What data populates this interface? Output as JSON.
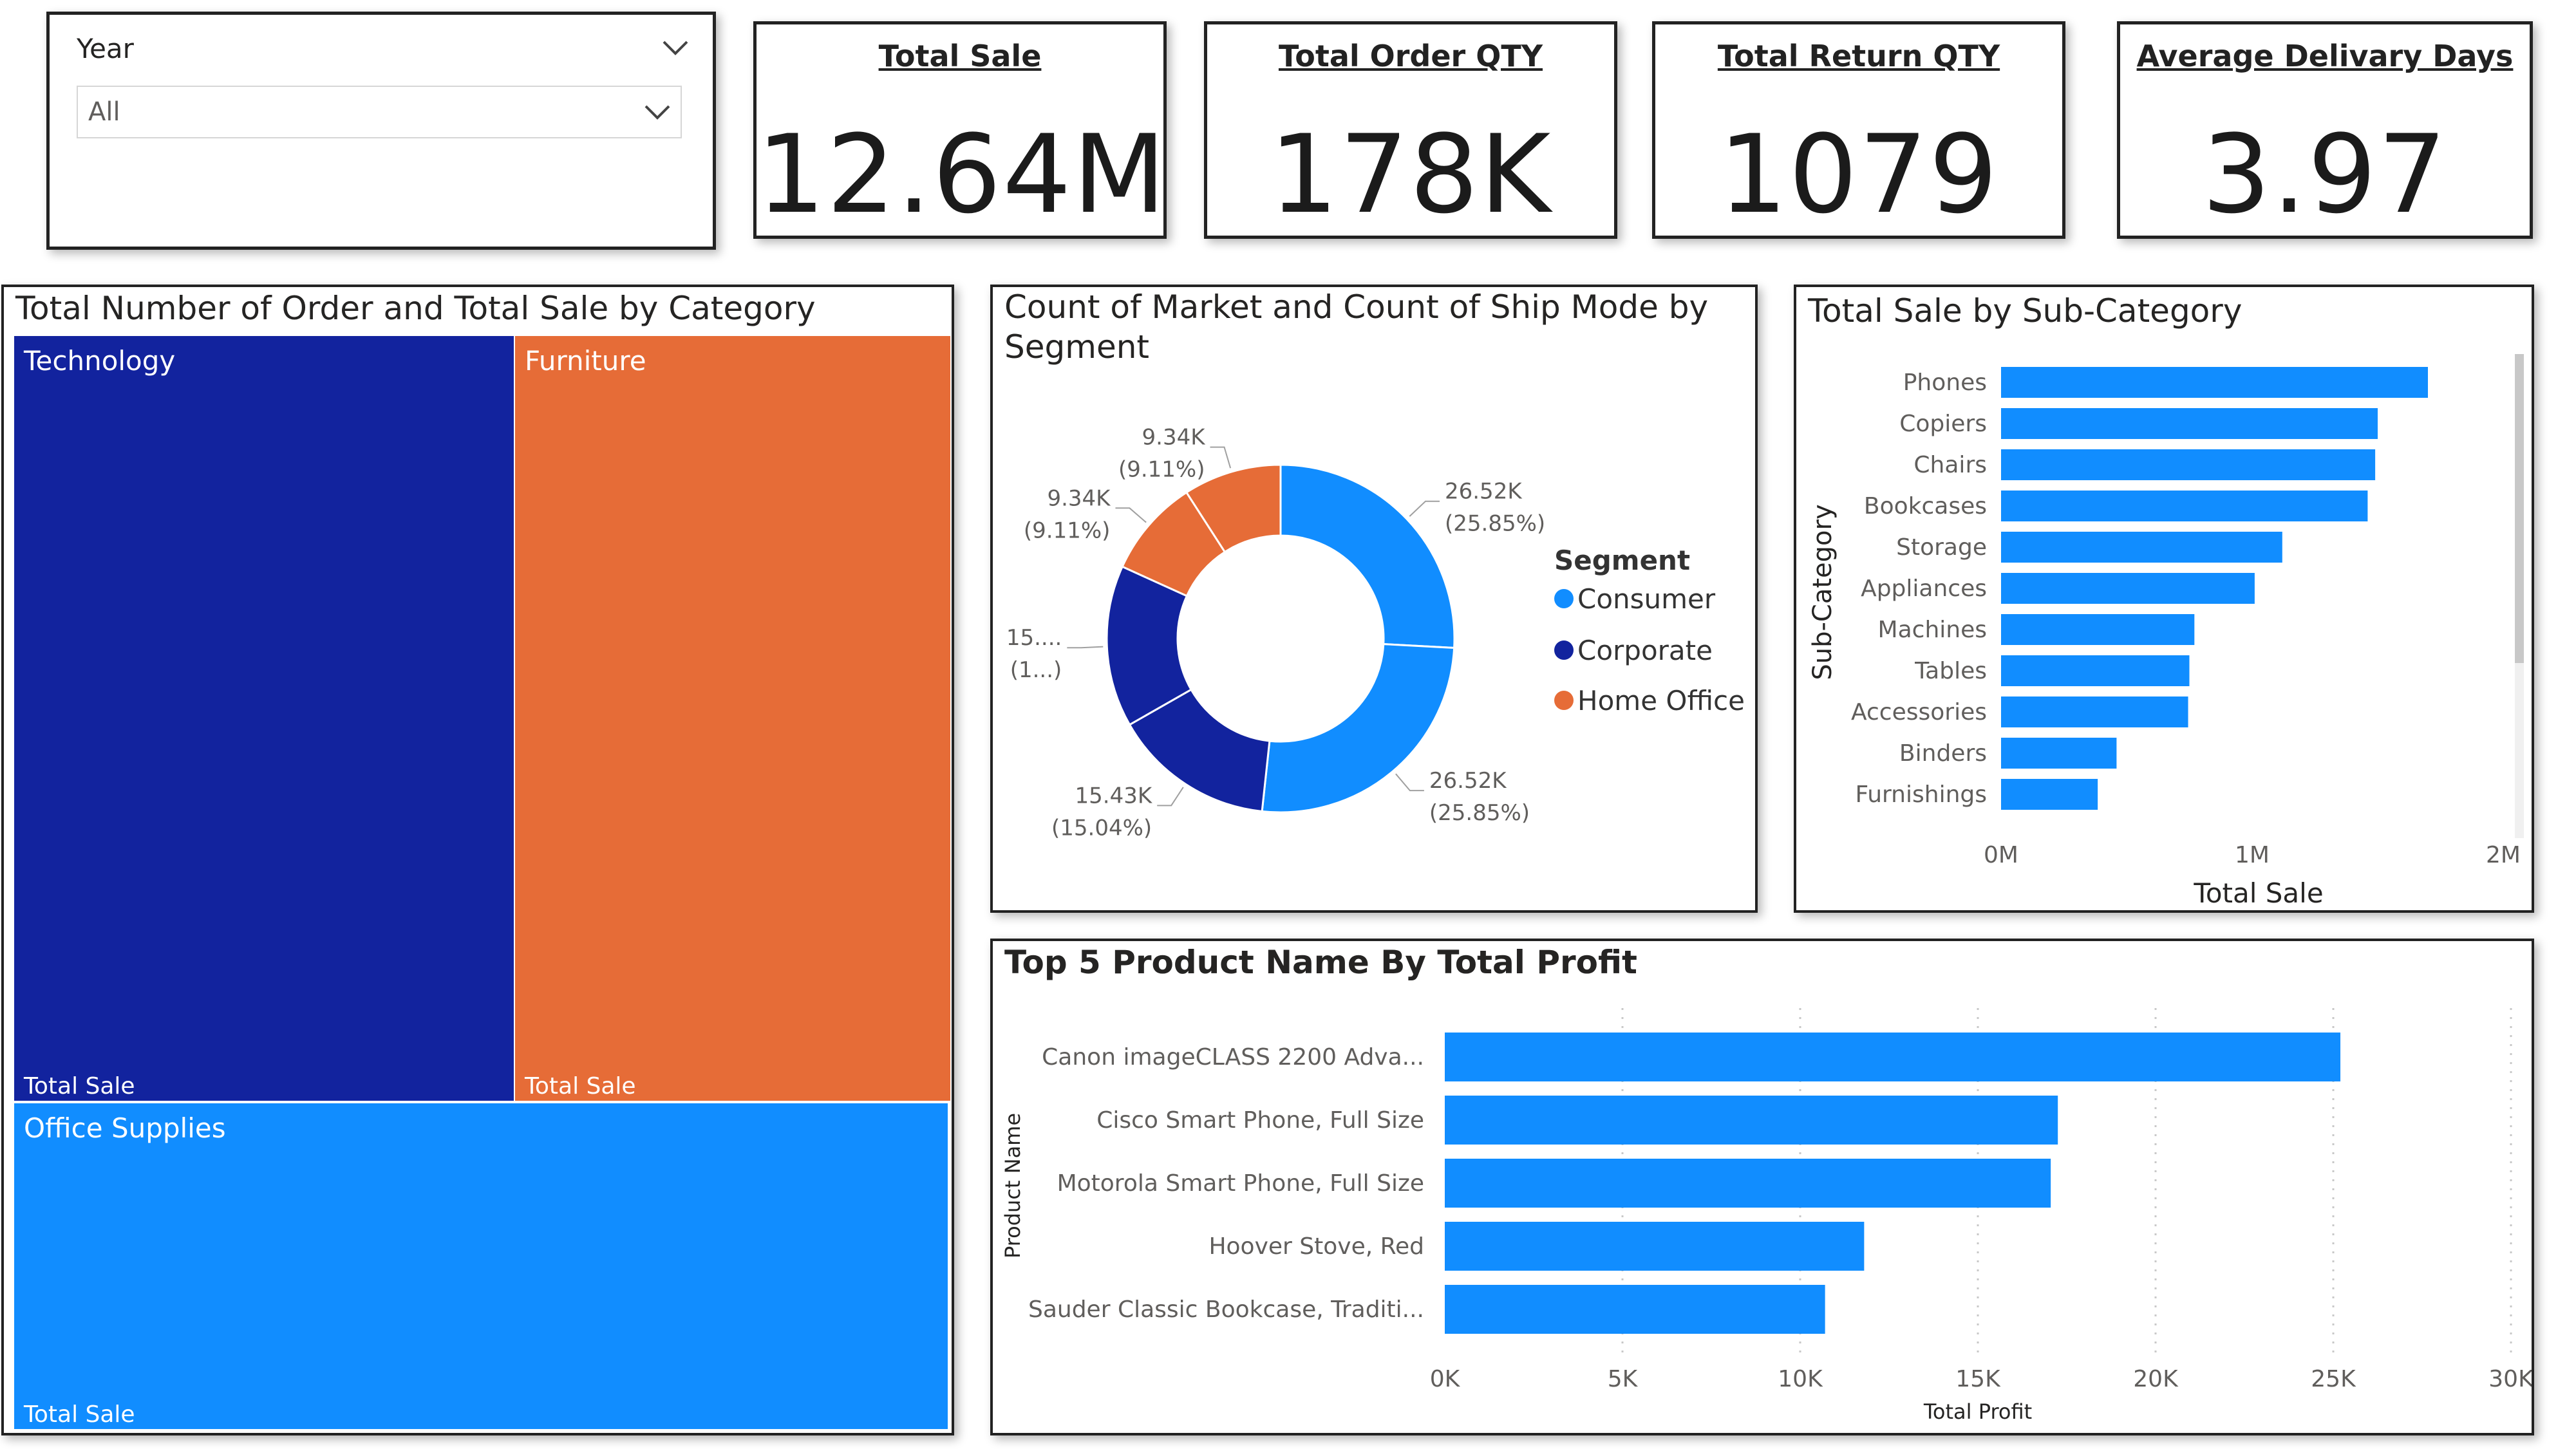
{
  "slicer": {
    "label": "Year",
    "value": "All"
  },
  "kpis": {
    "total_sale": {
      "title": "Total Sale",
      "value": "12.64M"
    },
    "total_order_qty": {
      "title": "Total Order QTY",
      "value": "178K"
    },
    "total_return_qty": {
      "title": "Total Return QTY",
      "value": "1079"
    },
    "avg_delivery_days": {
      "title": "Average Delivary Days",
      "value": "3.97"
    }
  },
  "treemap": {
    "title": "Total Number of Order and Total Sale by Category",
    "tiles": [
      {
        "label": "Technology",
        "sub": "Total Sale",
        "color": "#12239e"
      },
      {
        "label": "Furniture",
        "sub": "Total Sale",
        "color": "#e66c37"
      },
      {
        "label": "Office Supplies",
        "sub": "Total Sale",
        "color": "#118dff"
      }
    ]
  },
  "donut": {
    "title_line1": "Count of Market and Count of Ship Mode by",
    "title_line2": "Segment",
    "legend_title": "Segment",
    "legend": [
      {
        "name": "Consumer",
        "color": "#118dff"
      },
      {
        "name": "Corporate",
        "color": "#12239e"
      },
      {
        "name": "Home Office",
        "color": "#e66c37"
      }
    ],
    "labels": [
      {
        "value": "26.52K",
        "pct": "(25.85%)"
      },
      {
        "value": "26.52K",
        "pct": "(25.85%)"
      },
      {
        "value": "15.43K",
        "pct": "(15.04%)"
      },
      {
        "value": "15....",
        "pct": "(1...)"
      },
      {
        "value": "9.34K",
        "pct": "(9.11%)"
      },
      {
        "value": "9.34K",
        "pct": "(9.11%)"
      }
    ]
  },
  "subcat": {
    "title": "Total Sale by Sub-Category",
    "ylabel": "Sub-Category",
    "xlabel": "Total Sale",
    "ticks": [
      "0M",
      "1M",
      "2M"
    ]
  },
  "profit": {
    "title": "Top 5 Product Name By Total Profit",
    "ylabel": "Product Name",
    "xlabel": "Total Profit",
    "ticks": [
      "0K",
      "5K",
      "10K",
      "15K",
      "20K",
      "25K",
      "30K"
    ]
  },
  "chart_data": [
    {
      "type": "pie",
      "title": "Count of Market and Count of Ship Mode by Segment",
      "legend_title": "Segment",
      "legend_position": "right",
      "slices": [
        {
          "segment": "Consumer",
          "value": 26520,
          "percent": 25.85,
          "color": "#118dff"
        },
        {
          "segment": "Consumer",
          "value": 26520,
          "percent": 25.85,
          "color": "#118dff"
        },
        {
          "segment": "Corporate",
          "value": 15430,
          "percent": 15.04,
          "color": "#12239e"
        },
        {
          "segment": "Corporate",
          "value": 15430,
          "percent": 15.04,
          "color": "#12239e"
        },
        {
          "segment": "Home Office",
          "value": 9340,
          "percent": 9.11,
          "color": "#e66c37"
        },
        {
          "segment": "Home Office",
          "value": 9340,
          "percent": 9.11,
          "color": "#e66c37"
        }
      ]
    },
    {
      "type": "bar",
      "orientation": "horizontal",
      "title": "Total Sale by Sub-Category",
      "categories": [
        "Phones",
        "Copiers",
        "Chairs",
        "Bookcases",
        "Storage",
        "Appliances",
        "Machines",
        "Tables",
        "Accessories",
        "Binders",
        "Furnishings"
      ],
      "values": [
        1700000,
        1500000,
        1490000,
        1460000,
        1120000,
        1010000,
        770000,
        750000,
        745000,
        460000,
        385000
      ],
      "xlim": [
        0,
        2000000
      ],
      "xlabel": "Total Sale",
      "ylabel": "Sub-Category",
      "color": "#118dff",
      "grid": false
    },
    {
      "type": "bar",
      "orientation": "horizontal",
      "title": "Top 5 Product Name By Total Profit",
      "categories": [
        "Canon imageCLASS 2200 Adva...",
        "Cisco Smart Phone, Full Size",
        "Motorola Smart Phone, Full Size",
        "Hoover Stove, Red",
        "Sauder Classic Bookcase, Traditi..."
      ],
      "values": [
        25200,
        17250,
        17050,
        11800,
        10700
      ],
      "xlim": [
        0,
        30000
      ],
      "xlabel": "Total Profit",
      "ylabel": "Product Name",
      "color": "#118dff",
      "grid": true
    }
  ]
}
